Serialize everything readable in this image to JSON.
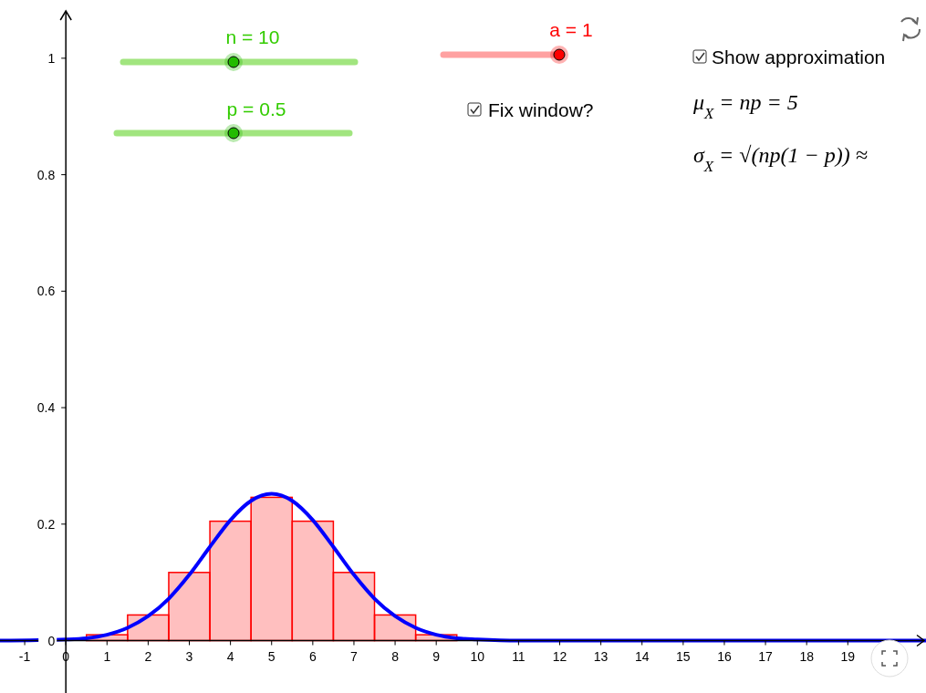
{
  "chart_data": {
    "type": "histogram",
    "bins": [
      0.5,
      1.5,
      2.5,
      3.5,
      4.5,
      5.5,
      6.5,
      7.5,
      8.5,
      9.5
    ],
    "series": [
      {
        "color": "#ff0000",
        "values": [
          0.01,
          0.044,
          0.117,
          0.205,
          0.246,
          0.205,
          0.117,
          0.044,
          0.01
        ]
      },
      {
        "type": "line",
        "color": "#0000ff",
        "x": [
          -1.6,
          0,
          0.5,
          1,
          1.5,
          2,
          2.5,
          3,
          3.5,
          4,
          4.5,
          5,
          5.5,
          6,
          6.5,
          7,
          7.5,
          8,
          8.5,
          9,
          9.5,
          10,
          11,
          12,
          20.9
        ],
        "values": [
          0,
          0.002,
          0.004,
          0.01,
          0.022,
          0.042,
          0.072,
          0.113,
          0.161,
          0.207,
          0.24,
          0.252,
          0.24,
          0.207,
          0.161,
          0.113,
          0.072,
          0.042,
          0.022,
          0.01,
          0.004,
          0.002,
          0,
          0,
          0
        ]
      }
    ],
    "xlim": [
      -1.6,
      20.9
    ],
    "ylim": [
      -0.09,
      1.1
    ],
    "xticks": [
      -1,
      0,
      1,
      2,
      3,
      4,
      5,
      6,
      7,
      8,
      9,
      10,
      11,
      12,
      13,
      14,
      15,
      16,
      17,
      18,
      19
    ],
    "yticks": [
      0,
      0.2,
      0.4,
      0.6,
      0.8,
      1
    ],
    "grid": false,
    "annotations": [
      "n = 10",
      "p = 0.5",
      "a = 1",
      "Fix window?",
      "Show approximation",
      "μ$_{X}$ = np = 5",
      "σ$_{X}$ = √(np(1 − p)) ≈"
    ]
  }
}
